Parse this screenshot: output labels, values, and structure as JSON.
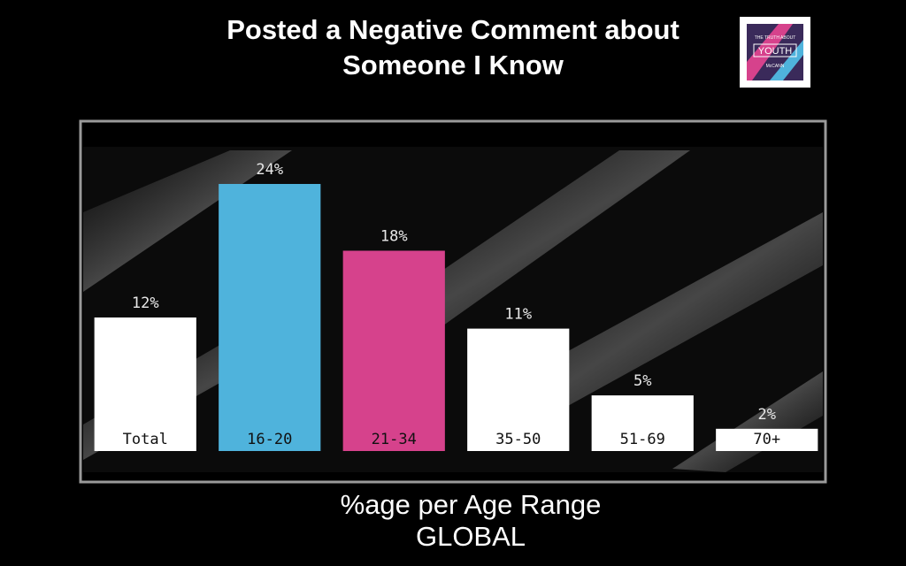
{
  "chart_data": {
    "type": "bar",
    "title": "Posted a Negative Comment about Someone I Know",
    "xlabel": "%age per Age Range",
    "subtitle": "GLOBAL",
    "categories": [
      "Total",
      "16-20",
      "21-34",
      "35-50",
      "51-69",
      "70+"
    ],
    "values": [
      12,
      24,
      18,
      11,
      5,
      2
    ],
    "value_labels": [
      "12%",
      "24%",
      "18%",
      "11%",
      "5%",
      "2%"
    ],
    "colors": [
      "#ffffff",
      "#4fb3dc",
      "#d6428c",
      "#ffffff",
      "#ffffff",
      "#ffffff"
    ],
    "ylim": [
      0,
      24
    ]
  },
  "logo": {
    "top": "THE TRUTH ABOUT",
    "main": "YOUTH",
    "bottom": "McCANN"
  }
}
